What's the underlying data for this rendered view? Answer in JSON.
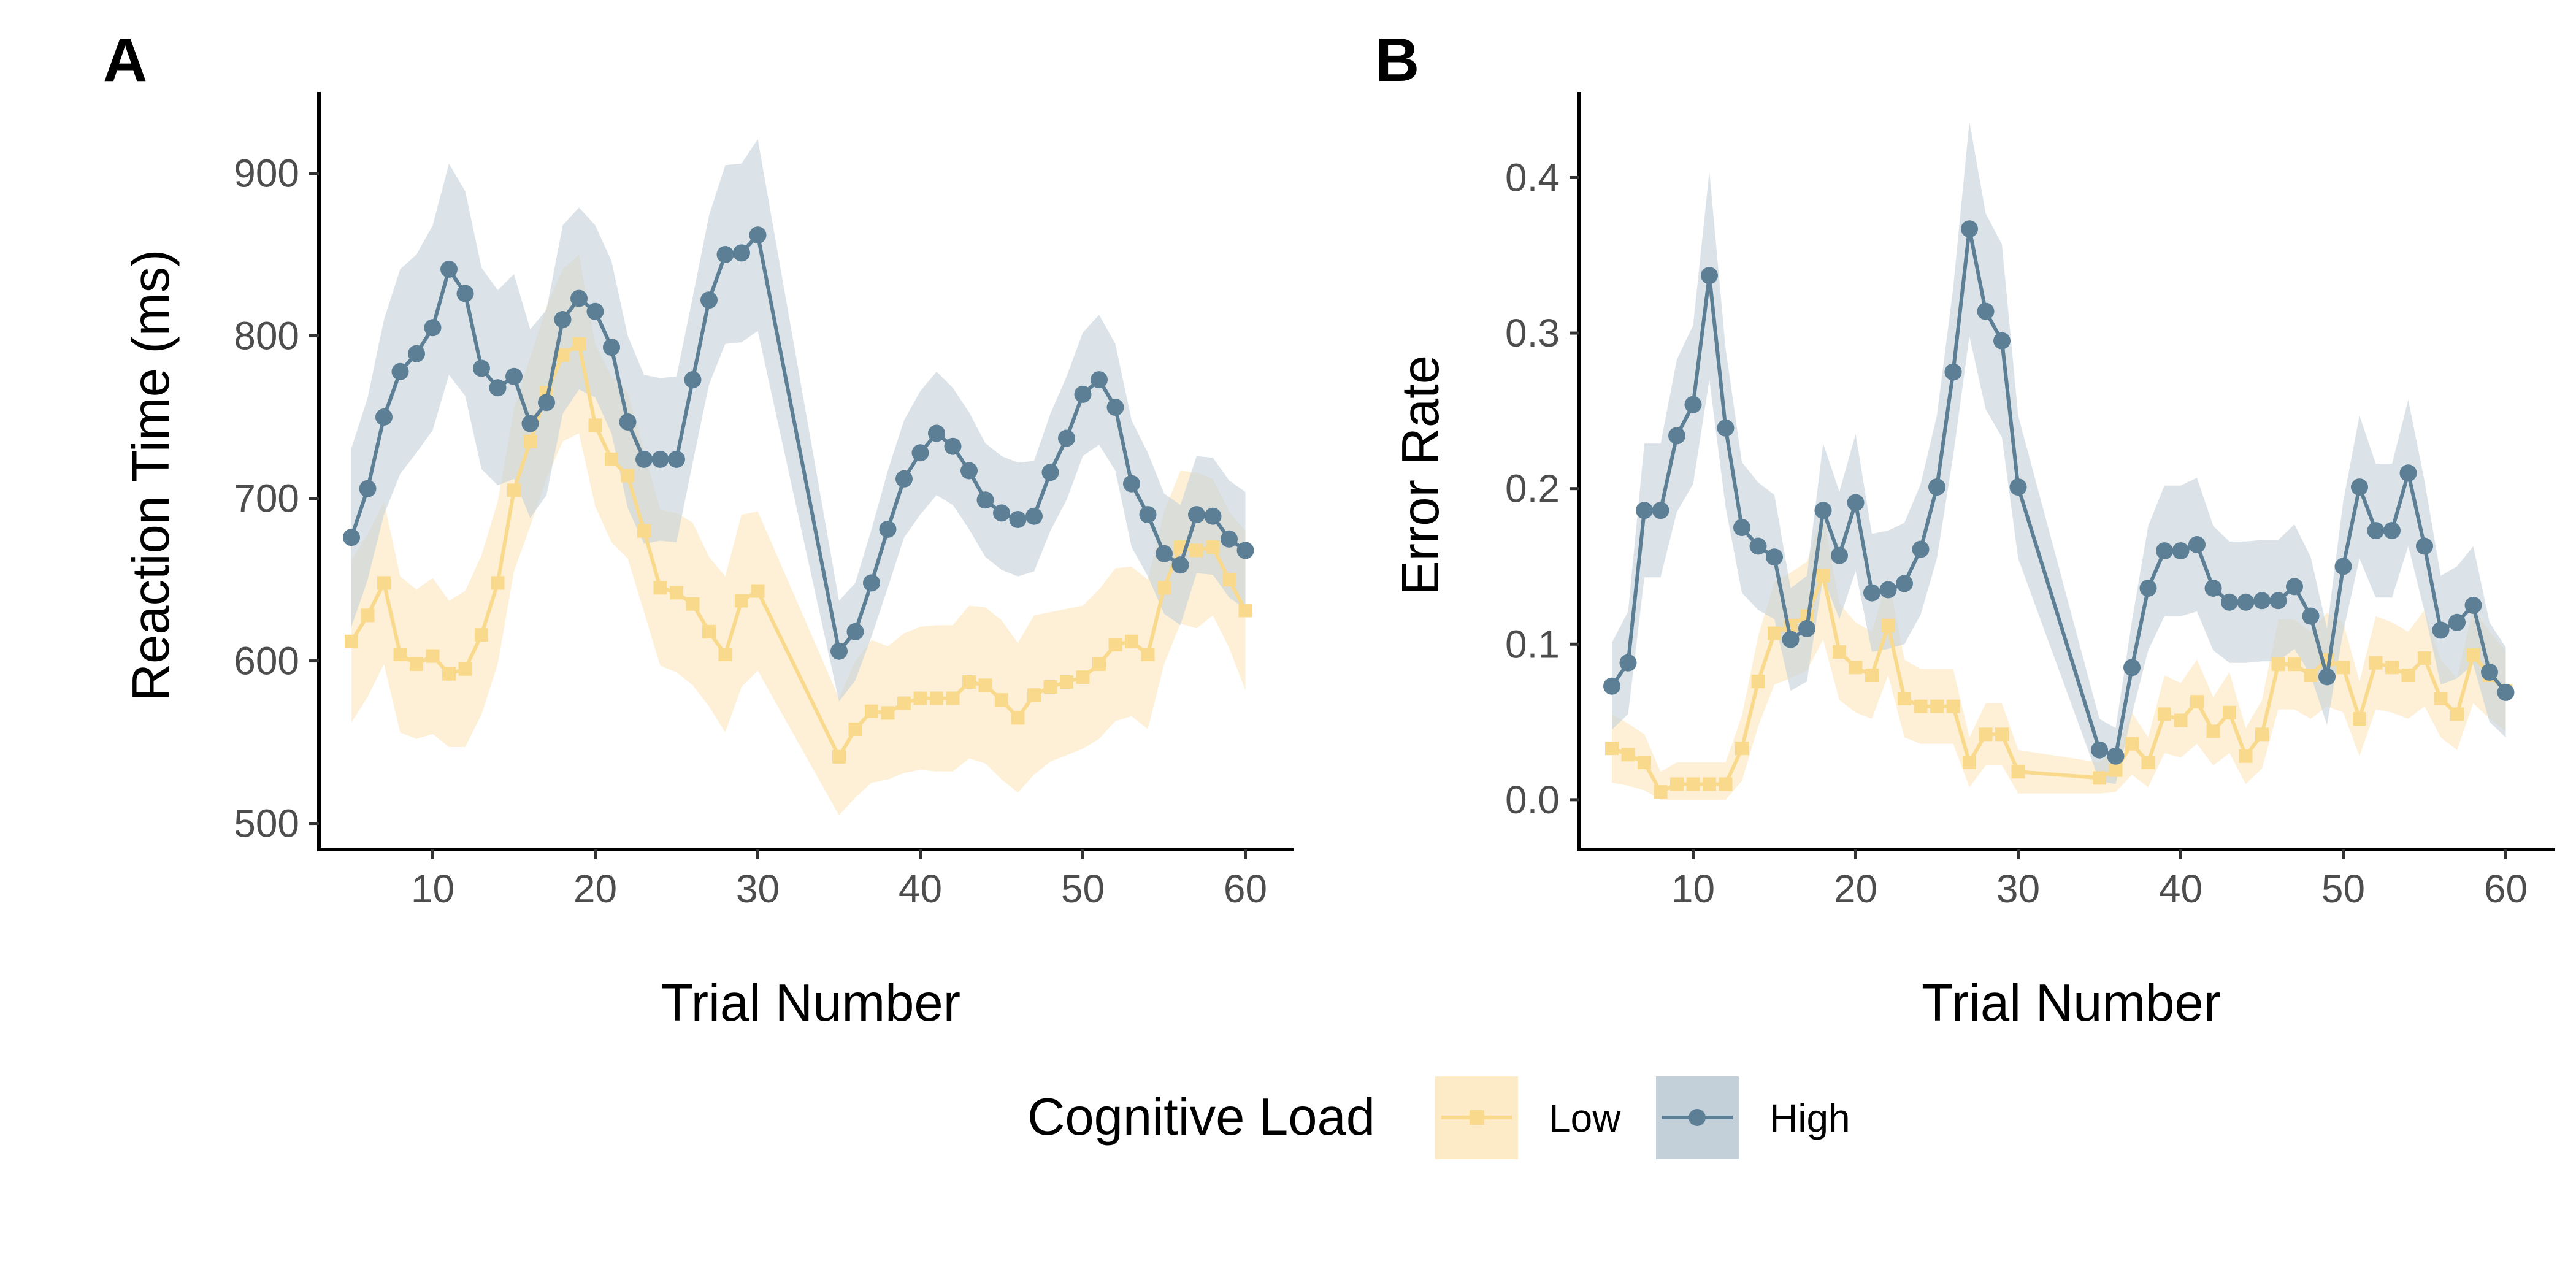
{
  "chart_data": [
    {
      "panel": "A",
      "type": "line",
      "xlabel": "Trial Number",
      "ylabel": "Reaction Time (ms)",
      "xlim": [
        3,
        63
      ],
      "ylim": [
        484,
        950
      ],
      "xticks": [
        10,
        20,
        30,
        40,
        50,
        60
      ],
      "yticks": [
        500,
        600,
        700,
        800,
        900
      ],
      "grid": false,
      "ribbons": true,
      "series": [
        {
          "name": "Low",
          "color": "#F9D98C",
          "ribbon_color": "#FDEBC8",
          "marker": "square",
          "x": [
            5,
            6,
            7,
            8,
            9,
            10,
            11,
            12,
            13,
            14,
            15,
            16,
            17,
            18,
            19,
            20,
            21,
            22,
            23,
            24,
            25,
            26,
            27,
            28,
            29,
            30,
            35,
            36,
            37,
            38,
            39,
            40,
            41,
            42,
            43,
            44,
            45,
            46,
            47,
            48,
            49,
            50,
            51,
            52,
            53,
            54,
            55,
            56,
            57,
            58,
            59,
            60
          ],
          "y": [
            612,
            628,
            648,
            604,
            598,
            603,
            592,
            595,
            616,
            648,
            705,
            735,
            765,
            788,
            795,
            745,
            724,
            714,
            680,
            645,
            642,
            635,
            618,
            604,
            637,
            643,
            541,
            558,
            569,
            568,
            574,
            577,
            577,
            577,
            587,
            585,
            576,
            565,
            579,
            584,
            587,
            590,
            598,
            610,
            612,
            604,
            645,
            670,
            668,
            670,
            650,
            631
          ],
          "lower": [
            562,
            578,
            598,
            556,
            552,
            555,
            547,
            547,
            567,
            598,
            655,
            683,
            712,
            735,
            740,
            695,
            673,
            663,
            630,
            597,
            593,
            585,
            572,
            556,
            584,
            594,
            505,
            516,
            525,
            527,
            531,
            533,
            532,
            532,
            540,
            537,
            527,
            519,
            530,
            538,
            542,
            546,
            552,
            563,
            566,
            558,
            598,
            623,
            620,
            628,
            608,
            582
          ],
          "upper": [
            662,
            678,
            698,
            652,
            644,
            651,
            637,
            643,
            665,
            698,
            755,
            787,
            818,
            841,
            850,
            795,
            775,
            765,
            730,
            693,
            691,
            685,
            664,
            652,
            690,
            692,
            577,
            600,
            613,
            609,
            617,
            621,
            622,
            622,
            634,
            633,
            625,
            611,
            628,
            630,
            632,
            634,
            644,
            657,
            658,
            650,
            692,
            717,
            716,
            712,
            692,
            680
          ]
        },
        {
          "name": "High",
          "color": "#5C7F95",
          "ribbon_color": "#C3D0DA",
          "marker": "circle",
          "x": [
            5,
            6,
            7,
            8,
            9,
            10,
            11,
            12,
            13,
            14,
            15,
            16,
            17,
            18,
            19,
            20,
            21,
            22,
            23,
            24,
            25,
            26,
            27,
            28,
            29,
            30,
            35,
            36,
            37,
            38,
            39,
            40,
            41,
            42,
            43,
            44,
            45,
            46,
            47,
            48,
            49,
            50,
            51,
            52,
            53,
            54,
            55,
            56,
            57,
            58,
            59,
            60
          ],
          "y": [
            676,
            706,
            750,
            778,
            789,
            805,
            841,
            826,
            780,
            768,
            775,
            746,
            759,
            810,
            823,
            815,
            793,
            747,
            724,
            724,
            724,
            773,
            822,
            850,
            851,
            862,
            606,
            618,
            648,
            681,
            712,
            728,
            740,
            732,
            717,
            699,
            691,
            687,
            689,
            716,
            737,
            764,
            773,
            756,
            709,
            690,
            666,
            659,
            690,
            689,
            675,
            668
          ],
          "lower": [
            621,
            650,
            690,
            715,
            728,
            742,
            776,
            763,
            718,
            708,
            712,
            688,
            702,
            752,
            767,
            762,
            740,
            694,
            672,
            674,
            673,
            722,
            770,
            795,
            796,
            803,
            575,
            588,
            615,
            645,
            676,
            690,
            702,
            696,
            681,
            664,
            656,
            652,
            655,
            680,
            699,
            726,
            733,
            717,
            670,
            652,
            629,
            622,
            654,
            653,
            639,
            632
          ],
          "upper": [
            731,
            762,
            810,
            841,
            850,
            868,
            906,
            889,
            842,
            828,
            838,
            804,
            816,
            868,
            879,
            868,
            846,
            800,
            776,
            774,
            775,
            824,
            874,
            905,
            906,
            921,
            637,
            648,
            681,
            717,
            748,
            766,
            778,
            768,
            753,
            734,
            726,
            722,
            723,
            752,
            775,
            802,
            813,
            795,
            748,
            728,
            703,
            696,
            726,
            725,
            711,
            704
          ]
        }
      ]
    },
    {
      "panel": "B",
      "type": "line",
      "xlabel": "Trial Number",
      "ylabel": "Error Rate",
      "xlim": [
        3,
        63
      ],
      "ylim": [
        -0.032,
        0.455
      ],
      "xticks": [
        10,
        20,
        30,
        40,
        50,
        60
      ],
      "yticks": [
        0.0,
        0.1,
        0.2,
        0.3,
        0.4
      ],
      "ytick_labels": [
        "0.0",
        "0.1",
        "0.2",
        "0.3",
        "0.4"
      ],
      "grid": false,
      "ribbons": true,
      "series": [
        {
          "name": "Low",
          "color": "#F9D98C",
          "ribbon_color": "#FDEBC8",
          "marker": "square",
          "x": [
            5,
            6,
            7,
            8,
            9,
            10,
            11,
            12,
            13,
            14,
            15,
            16,
            17,
            18,
            19,
            20,
            21,
            22,
            23,
            24,
            25,
            26,
            27,
            28,
            29,
            30,
            35,
            36,
            37,
            38,
            39,
            40,
            41,
            42,
            43,
            44,
            45,
            46,
            47,
            48,
            49,
            50,
            51,
            52,
            53,
            54,
            55,
            56,
            57,
            58,
            59,
            60
          ],
          "y": [
            0.033,
            0.029,
            0.024,
            0.005,
            0.01,
            0.01,
            0.01,
            0.01,
            0.033,
            0.076,
            0.107,
            0.112,
            0.118,
            0.144,
            0.095,
            0.085,
            0.08,
            0.112,
            0.065,
            0.06,
            0.06,
            0.06,
            0.024,
            0.042,
            0.042,
            0.018,
            0.014,
            0.019,
            0.036,
            0.024,
            0.055,
            0.051,
            0.063,
            0.044,
            0.056,
            0.028,
            0.042,
            0.087,
            0.087,
            0.08,
            0.09,
            0.085,
            0.052,
            0.088,
            0.085,
            0.08,
            0.091,
            0.065,
            0.055,
            0.093,
            0.08,
            0.07
          ],
          "lower": [
            0.011,
            0.009,
            0.006,
            0.0,
            0.0,
            0.0,
            0.0,
            0.0,
            0.012,
            0.047,
            0.074,
            0.078,
            0.083,
            0.103,
            0.064,
            0.056,
            0.052,
            0.08,
            0.04,
            0.036,
            0.036,
            0.036,
            0.008,
            0.022,
            0.022,
            0.004,
            0.004,
            0.005,
            0.016,
            0.008,
            0.03,
            0.027,
            0.036,
            0.022,
            0.03,
            0.01,
            0.02,
            0.058,
            0.058,
            0.052,
            0.06,
            0.056,
            0.028,
            0.058,
            0.056,
            0.052,
            0.06,
            0.04,
            0.032,
            0.062,
            0.052,
            0.044
          ],
          "upper": [
            0.055,
            0.049,
            0.042,
            0.018,
            0.024,
            0.024,
            0.024,
            0.024,
            0.054,
            0.105,
            0.14,
            0.146,
            0.153,
            0.185,
            0.126,
            0.114,
            0.108,
            0.144,
            0.09,
            0.084,
            0.084,
            0.084,
            0.04,
            0.062,
            0.062,
            0.032,
            0.024,
            0.033,
            0.056,
            0.04,
            0.08,
            0.075,
            0.09,
            0.066,
            0.082,
            0.046,
            0.064,
            0.116,
            0.116,
            0.108,
            0.12,
            0.114,
            0.076,
            0.118,
            0.114,
            0.108,
            0.122,
            0.09,
            0.078,
            0.124,
            0.108,
            0.096
          ]
        },
        {
          "name": "High",
          "color": "#5C7F95",
          "ribbon_color": "#C3D0DA",
          "marker": "circle",
          "x": [
            5,
            6,
            7,
            8,
            9,
            10,
            11,
            12,
            13,
            14,
            15,
            16,
            17,
            18,
            19,
            20,
            21,
            22,
            23,
            24,
            25,
            26,
            27,
            28,
            29,
            30,
            35,
            36,
            37,
            38,
            39,
            40,
            41,
            42,
            43,
            44,
            45,
            46,
            47,
            48,
            49,
            50,
            51,
            52,
            53,
            54,
            55,
            56,
            57,
            58,
            59,
            60
          ],
          "y": [
            0.073,
            0.088,
            0.186,
            0.186,
            0.234,
            0.254,
            0.337,
            0.239,
            0.175,
            0.163,
            0.156,
            0.103,
            0.11,
            0.186,
            0.157,
            0.191,
            0.133,
            0.135,
            0.139,
            0.161,
            0.201,
            0.275,
            0.367,
            0.314,
            0.295,
            0.201,
            0.032,
            0.028,
            0.085,
            0.136,
            0.16,
            0.16,
            0.164,
            0.136,
            0.127,
            0.127,
            0.128,
            0.128,
            0.137,
            0.118,
            0.079,
            0.15,
            0.201,
            0.173,
            0.173,
            0.21,
            0.163,
            0.109,
            0.114,
            0.125,
            0.082,
            0.069
          ],
          "lower": [
            0.045,
            0.055,
            0.143,
            0.143,
            0.185,
            0.203,
            0.27,
            0.188,
            0.133,
            0.122,
            0.116,
            0.07,
            0.076,
            0.143,
            0.116,
            0.147,
            0.095,
            0.097,
            0.1,
            0.119,
            0.155,
            0.221,
            0.298,
            0.251,
            0.233,
            0.155,
            0.012,
            0.01,
            0.055,
            0.096,
            0.118,
            0.118,
            0.121,
            0.096,
            0.088,
            0.088,
            0.089,
            0.089,
            0.097,
            0.08,
            0.048,
            0.108,
            0.155,
            0.13,
            0.13,
            0.163,
            0.121,
            0.074,
            0.078,
            0.087,
            0.05,
            0.04
          ],
          "upper": [
            0.101,
            0.121,
            0.229,
            0.229,
            0.283,
            0.305,
            0.404,
            0.29,
            0.217,
            0.204,
            0.196,
            0.136,
            0.144,
            0.229,
            0.198,
            0.235,
            0.171,
            0.173,
            0.178,
            0.203,
            0.247,
            0.329,
            0.436,
            0.377,
            0.357,
            0.247,
            0.052,
            0.046,
            0.115,
            0.176,
            0.202,
            0.202,
            0.207,
            0.176,
            0.166,
            0.166,
            0.167,
            0.167,
            0.177,
            0.156,
            0.11,
            0.192,
            0.247,
            0.216,
            0.216,
            0.257,
            0.205,
            0.144,
            0.15,
            0.163,
            0.114,
            0.098
          ]
        }
      ]
    }
  ],
  "legend": {
    "title": "Cognitive Load",
    "position": "bottom",
    "items": [
      {
        "label": "Low",
        "color": "#F9D98C",
        "ribbon_color": "#FDEBC8",
        "marker": "square"
      },
      {
        "label": "High",
        "color": "#5C7F95",
        "ribbon_color": "#C3D0DA",
        "marker": "circle"
      }
    ]
  }
}
